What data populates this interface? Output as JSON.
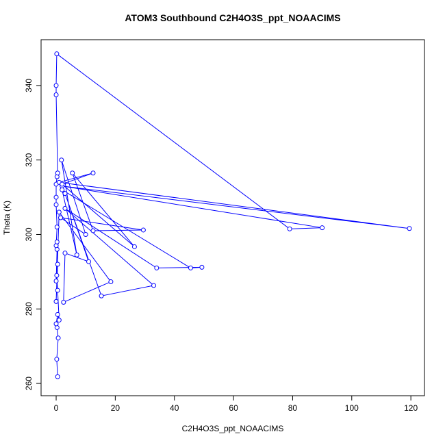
{
  "chart_data": {
    "type": "line",
    "title": "ATOM3 Southbound C2H4O3S_ppt_NOAACIMS",
    "x_label": "C2H4O3S_ppt_NOAACIMS",
    "y_label": "Theta (K)",
    "xlim": [
      -5.1,
      124.6
    ],
    "ylim": [
      256.7,
      352.3
    ],
    "xticks": [
      0,
      20,
      40,
      60,
      80,
      100,
      120
    ],
    "yticks": [
      260,
      280,
      300,
      320,
      340
    ],
    "series": [
      {
        "color": "#0000ff",
        "x": [
          0.5,
          0.2,
          0.7,
          0.3,
          0,
          0.5,
          1,
          0.5,
          0.2,
          0,
          0.3,
          0,
          0.3,
          0,
          0,
          0,
          0.3,
          0.5,
          0,
          0,
          0.2,
          79,
          90,
          2,
          119.5,
          1,
          12.5,
          2,
          26.5,
          5.5,
          12.5,
          29.5,
          1.5,
          10,
          1.8,
          7,
          2,
          45.5,
          49.3,
          34,
          3,
          33,
          15.3,
          3,
          11,
          3,
          2.5,
          18.5,
          1,
          0,
          0.5,
          0.3
        ],
        "values": [
          261.8,
          266.5,
          272.2,
          275,
          276,
          278.5,
          277,
          285,
          289,
          287.5,
          296,
          297,
          302,
          308,
          310,
          313.5,
          315.5,
          316.5,
          337.5,
          340,
          348.5,
          301.5,
          301.8,
          313,
          301.6,
          314,
          316.5,
          313.5,
          296.7,
          316.5,
          301,
          301.2,
          304.5,
          300,
          320,
          294.5,
          312,
          291,
          291.2,
          291,
          307,
          286.3,
          283.5,
          311,
          292.7,
          295,
          281.8,
          287.3,
          306,
          282,
          292,
          298
        ]
      }
    ]
  }
}
